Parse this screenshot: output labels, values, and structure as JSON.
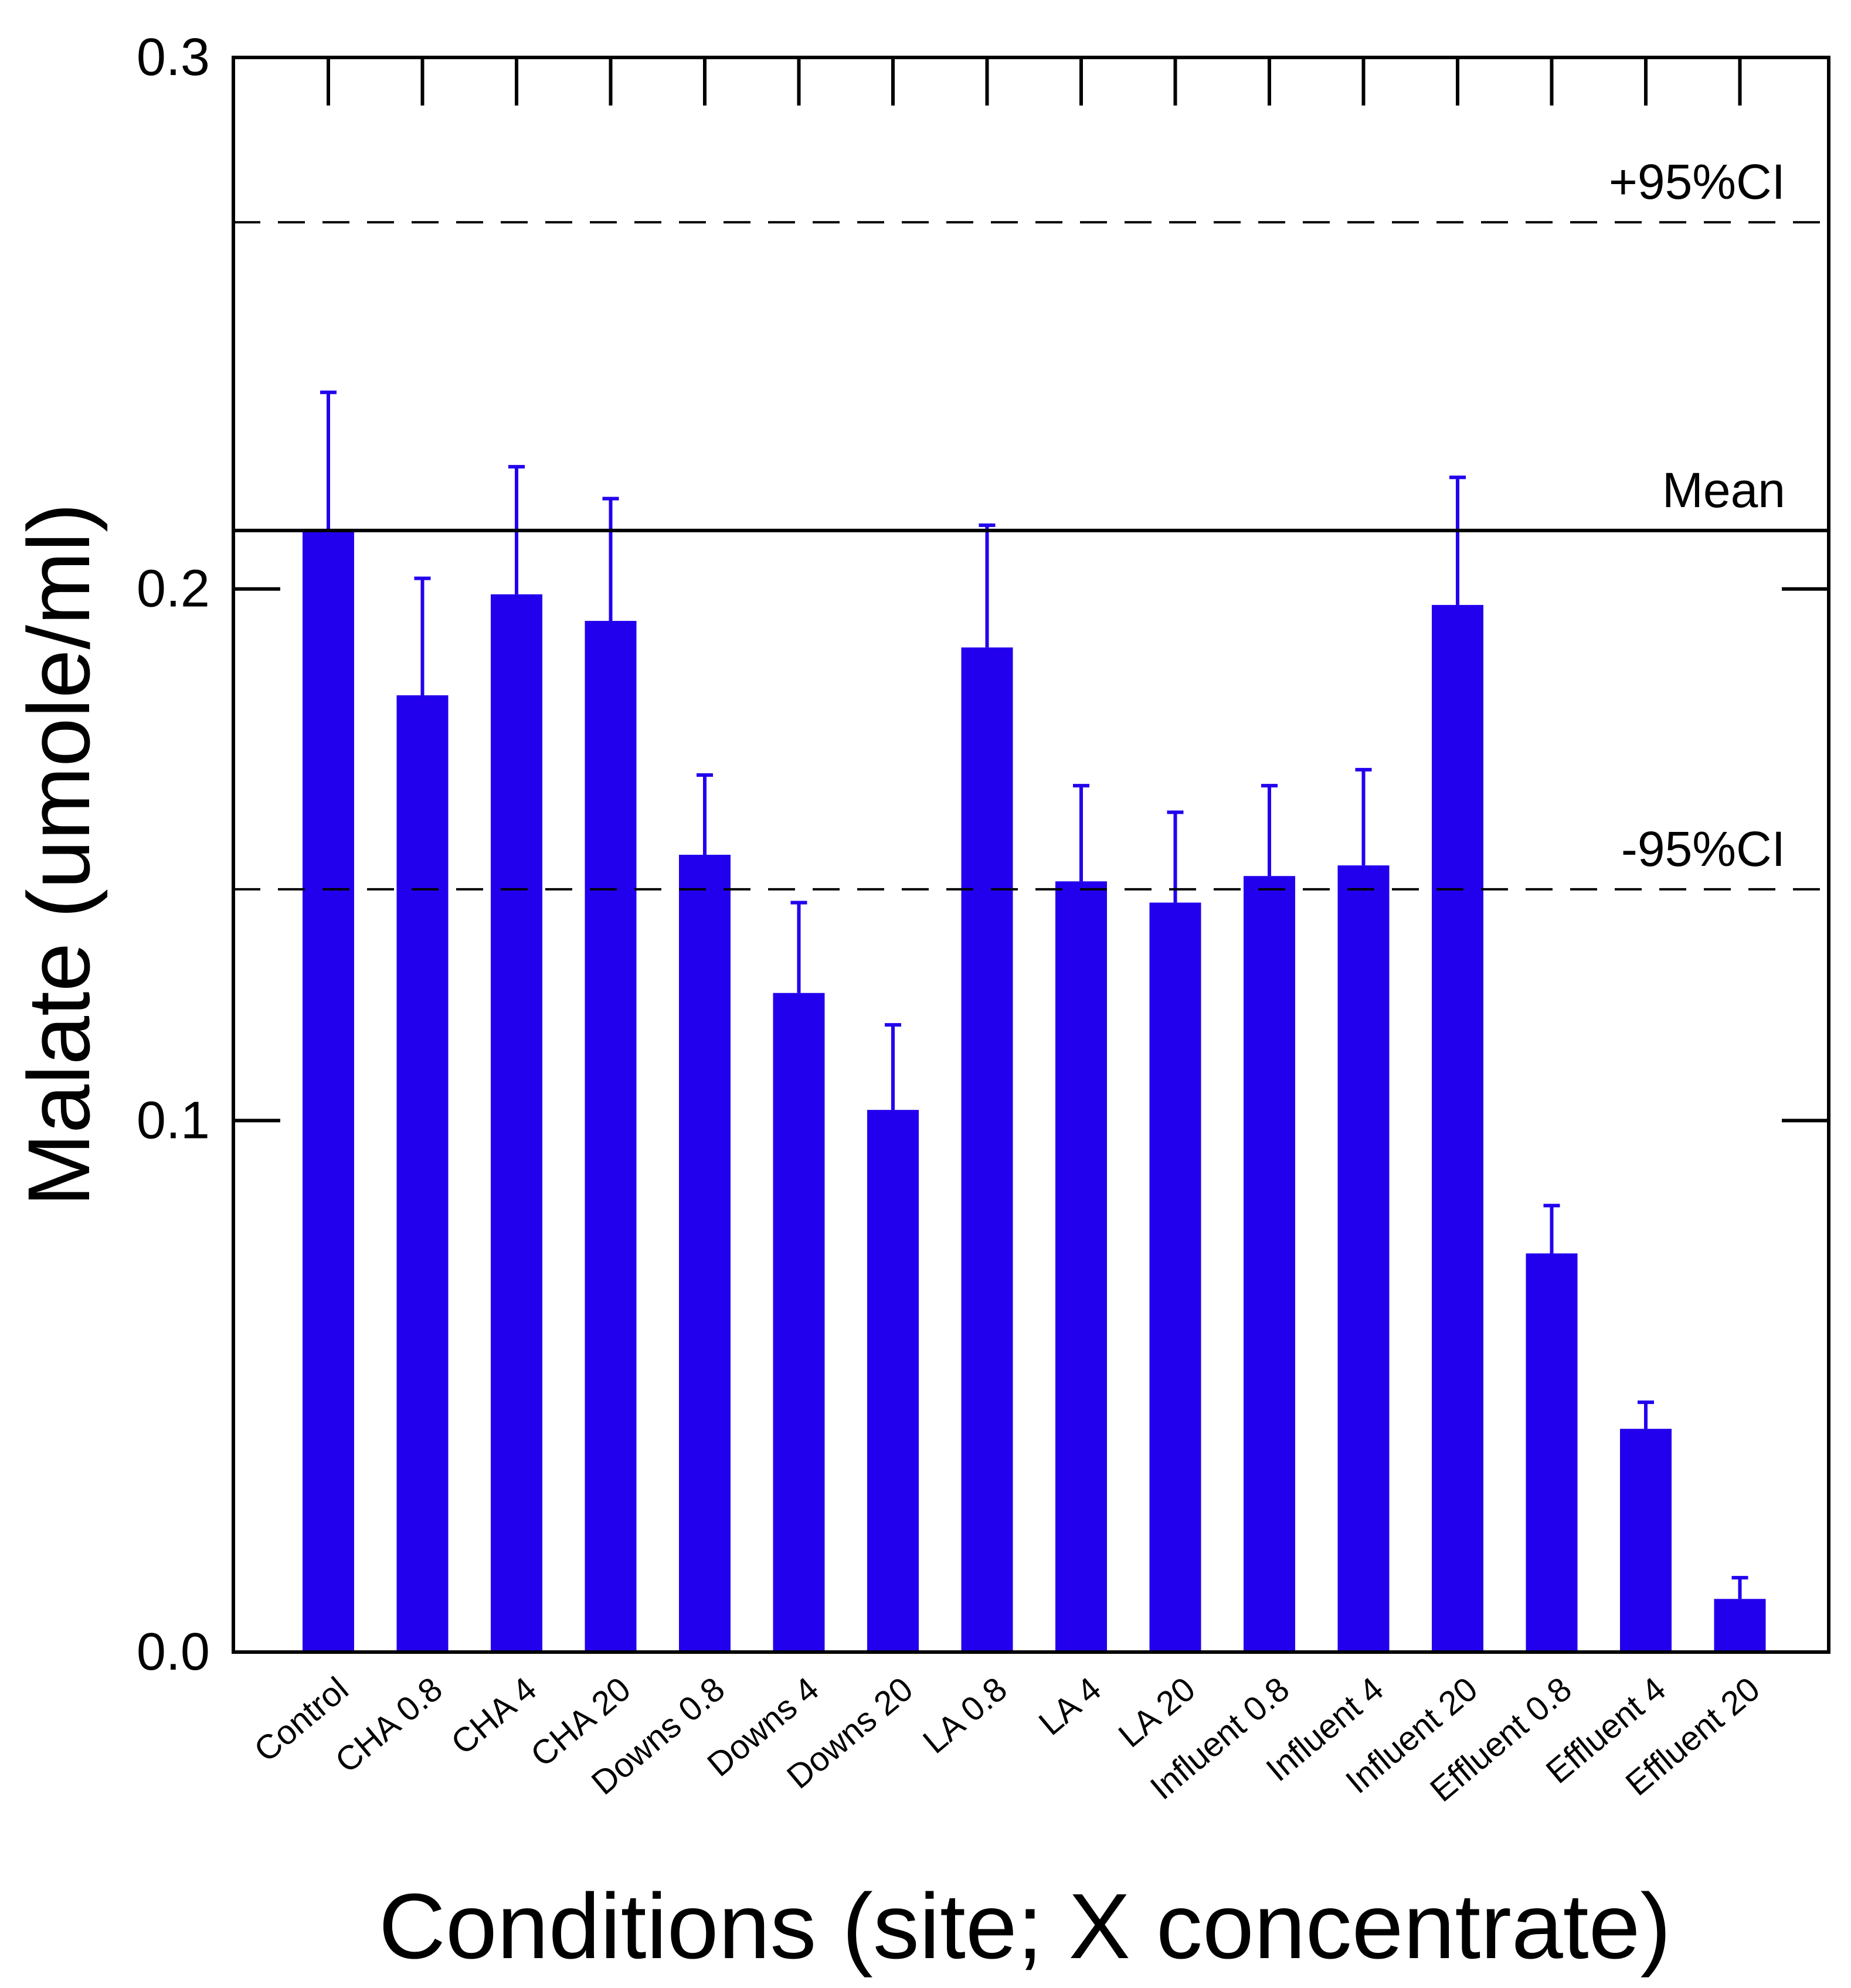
{
  "chart_data": {
    "type": "bar",
    "title": "",
    "xlabel": "Conditions (site; X concentrate)",
    "ylabel": "Malate (umole/ml)",
    "ylim": [
      0.0,
      0.3
    ],
    "yticks": [
      "0.0",
      "0.1",
      "0.2",
      "0.3"
    ],
    "bar_color": "#2200ee",
    "categories": [
      "Control",
      "CHA  0.8",
      "CHA  4",
      "CHA 20",
      "Downs 0.8",
      "Downs 4",
      "Downs 20",
      "LA  0.8",
      "LA  4",
      "LA  20",
      "Influent 0.8",
      "Influent 4",
      "Influent 20",
      "Effluent 0.8",
      "Effluent 4",
      "Effluent 20"
    ],
    "values": [
      0.211,
      0.18,
      0.199,
      0.194,
      0.15,
      0.124,
      0.102,
      0.189,
      0.145,
      0.141,
      0.146,
      0.148,
      0.197,
      0.075,
      0.042,
      0.01
    ],
    "error_upper": [
      0.237,
      0.202,
      0.223,
      0.217,
      0.165,
      0.141,
      0.118,
      0.212,
      0.163,
      0.158,
      0.163,
      0.166,
      0.221,
      0.084,
      0.047,
      0.014
    ],
    "reference_lines": [
      {
        "label": "+95%CI",
        "value": 0.269,
        "style": "dashed"
      },
      {
        "label": "Mean",
        "value": 0.211,
        "style": "solid"
      },
      {
        "label": "-95%CI",
        "value": 0.1435,
        "style": "dashed"
      }
    ],
    "grid": false,
    "legend": "none"
  }
}
